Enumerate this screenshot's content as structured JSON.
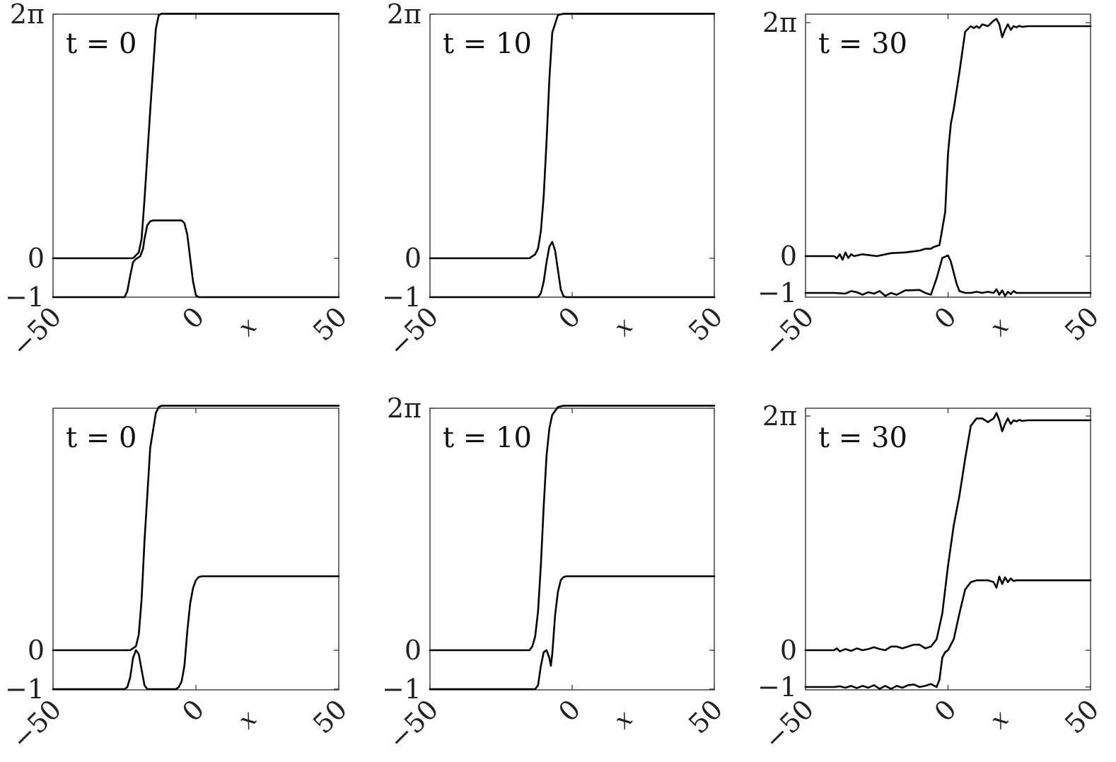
{
  "figure": {
    "panels": [
      {
        "annotation": "t = 0",
        "xlabel": "x",
        "x_ticks": [
          "−50",
          "0",
          "50"
        ],
        "y_ticks": [
          "2π",
          "0",
          "−1"
        ]
      },
      {
        "annotation": "t = 10",
        "xlabel": "x",
        "x_ticks": [
          "−50",
          "0",
          "50"
        ],
        "y_ticks": [
          "2π",
          "0",
          "−1"
        ]
      },
      {
        "annotation": "t = 30",
        "xlabel": "x",
        "x_ticks": [
          "−50",
          "0",
          "50"
        ],
        "y_ticks": [
          "2π",
          "0",
          "−1"
        ]
      },
      {
        "annotation": "t = 0",
        "xlabel": "x",
        "x_ticks": [
          "−50",
          "0",
          "50"
        ],
        "y_ticks": [
          "0",
          "−1"
        ]
      },
      {
        "annotation": "t = 10",
        "xlabel": "x",
        "x_ticks": [
          "−50",
          "0",
          "50"
        ],
        "y_ticks": [
          "2π",
          "0",
          "−1"
        ]
      },
      {
        "annotation": "t = 30",
        "xlabel": "x",
        "x_ticks": [
          "−50",
          "0",
          "50"
        ],
        "y_ticks": [
          "2π",
          "0",
          "−1"
        ]
      }
    ]
  },
  "chart_data": [
    {
      "type": "line",
      "annotation": "t = 0",
      "xlabel": "x",
      "xlim": [
        -50,
        50
      ],
      "ylim": [
        -1,
        6.2832
      ],
      "y_ticks": [
        6.2832,
        0,
        -1
      ],
      "series": [
        {
          "x": [
            -50,
            -22,
            -20,
            -19,
            -18,
            -16,
            -14,
            -13,
            -12,
            -11,
            50
          ],
          "y": [
            0,
            0,
            0.15,
            0.5,
            1.5,
            3.8,
            5.9,
            6.25,
            6.2832,
            6.2832,
            6.2832
          ]
        },
        {
          "x": [
            -50,
            -25,
            -24,
            -23,
            -22,
            -21,
            -19.5,
            -18.5,
            -18,
            -17,
            -16,
            -15,
            -14,
            -12,
            -8,
            -5,
            -4,
            -3,
            -2,
            -1,
            0,
            1,
            50
          ],
          "y": [
            -1,
            -1,
            -0.85,
            -0.45,
            -0.1,
            -0.02,
            0.05,
            0.25,
            0.5,
            0.85,
            0.95,
            0.97,
            0.97,
            0.97,
            0.97,
            0.97,
            0.9,
            0.6,
            0.0,
            -0.6,
            -0.95,
            -1,
            -1
          ]
        }
      ]
    },
    {
      "type": "line",
      "annotation": "t = 10",
      "xlabel": "x",
      "xlim": [
        -50,
        50
      ],
      "ylim": [
        -1,
        6.2832
      ],
      "y_ticks": [
        6.2832,
        0,
        -1
      ],
      "series": [
        {
          "x": [
            -50,
            -15,
            -13,
            -12,
            -11,
            -10,
            -9,
            -8,
            -7,
            -5,
            -3,
            -2,
            50
          ],
          "y": [
            0,
            0,
            0.1,
            0.25,
            0.7,
            1.6,
            3.0,
            4.6,
            5.8,
            6.25,
            6.2832,
            6.2832,
            6.2832
          ]
        },
        {
          "x": [
            -50,
            -12,
            -11,
            -10,
            -9,
            -8,
            -7,
            -6,
            -5,
            -4,
            -3,
            -2,
            50
          ],
          "y": [
            -1,
            -1,
            -0.9,
            -0.6,
            -0.1,
            0.3,
            0.42,
            0.2,
            -0.3,
            -0.8,
            -0.98,
            -1,
            -1
          ]
        }
      ]
    },
    {
      "type": "line",
      "annotation": "t = 30",
      "xlabel": "x",
      "xlim": [
        -50,
        50
      ],
      "ylim": [
        -1,
        6.2832
      ],
      "y_ticks": [
        6.2832,
        0,
        -1
      ],
      "series": [
        {
          "x": [
            -50,
            -40,
            -39,
            -38,
            -37,
            -36,
            -35,
            -34,
            -33,
            -30,
            -25,
            -20,
            -15,
            -10,
            -8,
            -6,
            -5,
            -3,
            -1,
            0,
            1,
            2,
            4,
            6,
            8,
            9,
            10,
            11,
            12,
            14,
            16,
            17,
            18,
            19,
            20,
            21,
            22,
            23,
            24,
            25,
            26,
            28,
            30,
            35,
            50
          ],
          "y": [
            0,
            0,
            -0.06,
            0.05,
            -0.1,
            0.1,
            -0.05,
            0.05,
            0,
            0.05,
            0,
            0.08,
            0.1,
            0.15,
            0.2,
            0.2,
            0.25,
            0.3,
            1.2,
            2.8,
            3.6,
            4.0,
            5.0,
            6.1,
            6.25,
            6.2,
            6.25,
            6.2,
            6.3,
            6.25,
            6.4,
            6.45,
            6.3,
            5.95,
            6.15,
            6.3,
            6.15,
            6.25,
            6.22,
            6.26,
            6.23,
            6.25,
            6.25,
            6.25,
            6.25
          ]
        },
        {
          "x": [
            -50,
            -40,
            -36,
            -34,
            -32,
            -30,
            -28,
            -26,
            -24,
            -22,
            -20,
            -18,
            -15,
            -10,
            -8,
            -6,
            -4,
            -2,
            0,
            1,
            3,
            4,
            6,
            8,
            10,
            12,
            14,
            16,
            17,
            18,
            19,
            20,
            21,
            22,
            23,
            24,
            25,
            26,
            28,
            30,
            50
          ],
          "y": [
            -1,
            -1,
            -1.02,
            -0.95,
            -0.98,
            -1.05,
            -0.98,
            -1.02,
            -0.95,
            -1.08,
            -1.0,
            -1.05,
            -0.93,
            -0.92,
            -1.0,
            -1.05,
            -0.6,
            -0.05,
            0.02,
            -0.15,
            -0.75,
            -0.95,
            -1.0,
            -1.0,
            -0.97,
            -1.0,
            -0.97,
            -1.0,
            -0.9,
            -1.05,
            -0.93,
            -1.08,
            -0.97,
            -1.03,
            -0.95,
            -1.0,
            -1.0,
            -1.0,
            -1.0,
            -1.0,
            -1.0
          ]
        }
      ]
    },
    {
      "type": "line",
      "annotation": "t = 0",
      "xlabel": "x",
      "xlim": [
        -50,
        50
      ],
      "ylim": [
        -1,
        6.2832
      ],
      "y_ticks": [
        0,
        -1
      ],
      "series": [
        {
          "x": [
            -50,
            -23,
            -21,
            -20,
            -19,
            -18,
            -16,
            -14,
            -13,
            -12,
            -11,
            50
          ],
          "y": [
            0,
            0,
            0.1,
            0.4,
            1.3,
            2.8,
            5.2,
            6.1,
            6.25,
            6.2832,
            6.2832,
            6.2832
          ]
        },
        {
          "x": [
            -50,
            -25,
            -24,
            -23,
            -22,
            -21,
            -20,
            -19,
            -18,
            -17,
            -16,
            -15,
            -8,
            -7,
            -6,
            -5,
            -4,
            -3,
            -2,
            -1,
            0,
            1,
            2,
            3,
            4,
            50
          ],
          "y": [
            -1,
            -1,
            -0.95,
            -0.7,
            -0.2,
            0.0,
            -0.1,
            -0.5,
            -0.9,
            -1.0,
            -1.0,
            -1.0,
            -1.0,
            -1.0,
            -0.95,
            -0.8,
            -0.4,
            0.5,
            1.2,
            1.6,
            1.8,
            1.88,
            1.9,
            1.9,
            1.9,
            1.9
          ]
        }
      ]
    },
    {
      "type": "line",
      "annotation": "t = 10",
      "xlabel": "x",
      "xlim": [
        -50,
        50
      ],
      "ylim": [
        -1,
        6.2832
      ],
      "y_ticks": [
        6.2832,
        0,
        -1
      ],
      "series": [
        {
          "x": [
            -50,
            -15,
            -14,
            -13,
            -12,
            -11,
            -10,
            -9,
            -8,
            -7,
            -5,
            -3,
            -2,
            50
          ],
          "y": [
            0,
            0,
            0.1,
            0.35,
            1.0,
            2.2,
            3.7,
            5.0,
            5.7,
            6.05,
            6.25,
            6.2832,
            6.2832,
            6.2832
          ]
        },
        {
          "x": [
            -50,
            -13,
            -12,
            -11,
            -10,
            -9,
            -8,
            -7.5,
            -7,
            -6,
            -5,
            -4,
            -3,
            -2,
            -1,
            50
          ],
          "y": [
            -1,
            -1,
            -0.9,
            -0.4,
            -0.05,
            0.0,
            -0.2,
            -0.4,
            -0.1,
            0.9,
            1.5,
            1.8,
            1.88,
            1.9,
            1.9,
            1.9
          ]
        }
      ]
    },
    {
      "type": "line",
      "annotation": "t = 30",
      "xlabel": "x",
      "xlim": [
        -50,
        50
      ],
      "ylim": [
        -1,
        6.2832
      ],
      "y_ticks": [
        6.2832,
        0,
        -1
      ],
      "series": [
        {
          "x": [
            -50,
            -40,
            -39,
            -38,
            -36,
            -34,
            -32,
            -30,
            -28,
            -26,
            -24,
            -22,
            -20,
            -18,
            -16,
            -14,
            -12,
            -10,
            -8,
            -6,
            -4,
            -2,
            0,
            2,
            4,
            6,
            8,
            10,
            12,
            14,
            16,
            17,
            18,
            19,
            20,
            21,
            22,
            23,
            24,
            25,
            26,
            28,
            30,
            50
          ],
          "y": [
            0,
            0,
            0.05,
            -0.03,
            0.03,
            -0.02,
            0.05,
            0.0,
            0.03,
            0.08,
            0.03,
            0.0,
            0.1,
            0.1,
            0.05,
            0.1,
            0.15,
            0.15,
            0.05,
            0.1,
            0.3,
            1.0,
            2.3,
            3.4,
            4.2,
            5.2,
            6.1,
            6.3,
            6.3,
            6.2,
            6.3,
            6.45,
            6.25,
            5.95,
            6.15,
            6.3,
            6.15,
            6.25,
            6.22,
            6.26,
            6.23,
            6.25,
            6.25,
            6.25
          ]
        },
        {
          "x": [
            -50,
            -40,
            -38,
            -36,
            -34,
            -32,
            -30,
            -28,
            -26,
            -24,
            -22,
            -20,
            -18,
            -16,
            -14,
            -12,
            -10,
            -8,
            -6,
            -4,
            -3,
            -2,
            -1,
            0,
            2,
            4,
            6,
            8,
            10,
            12,
            14,
            16,
            17,
            18,
            19,
            20,
            21,
            22,
            23,
            24,
            25,
            26,
            30,
            50
          ],
          "y": [
            -1,
            -1,
            -0.98,
            -1.02,
            -0.97,
            -1.03,
            -0.97,
            -1.02,
            -0.95,
            -1.05,
            -0.97,
            -1.05,
            -0.97,
            -1.02,
            -0.95,
            -0.93,
            -1.0,
            -0.97,
            -0.92,
            -1.0,
            -0.8,
            -0.2,
            -0.05,
            0.0,
            0.3,
            1.0,
            1.65,
            1.85,
            1.9,
            1.9,
            1.9,
            1.85,
            1.7,
            2.0,
            1.8,
            1.98,
            1.85,
            1.95,
            1.88,
            1.9,
            1.9,
            1.9,
            1.9,
            1.9
          ]
        }
      ]
    }
  ]
}
